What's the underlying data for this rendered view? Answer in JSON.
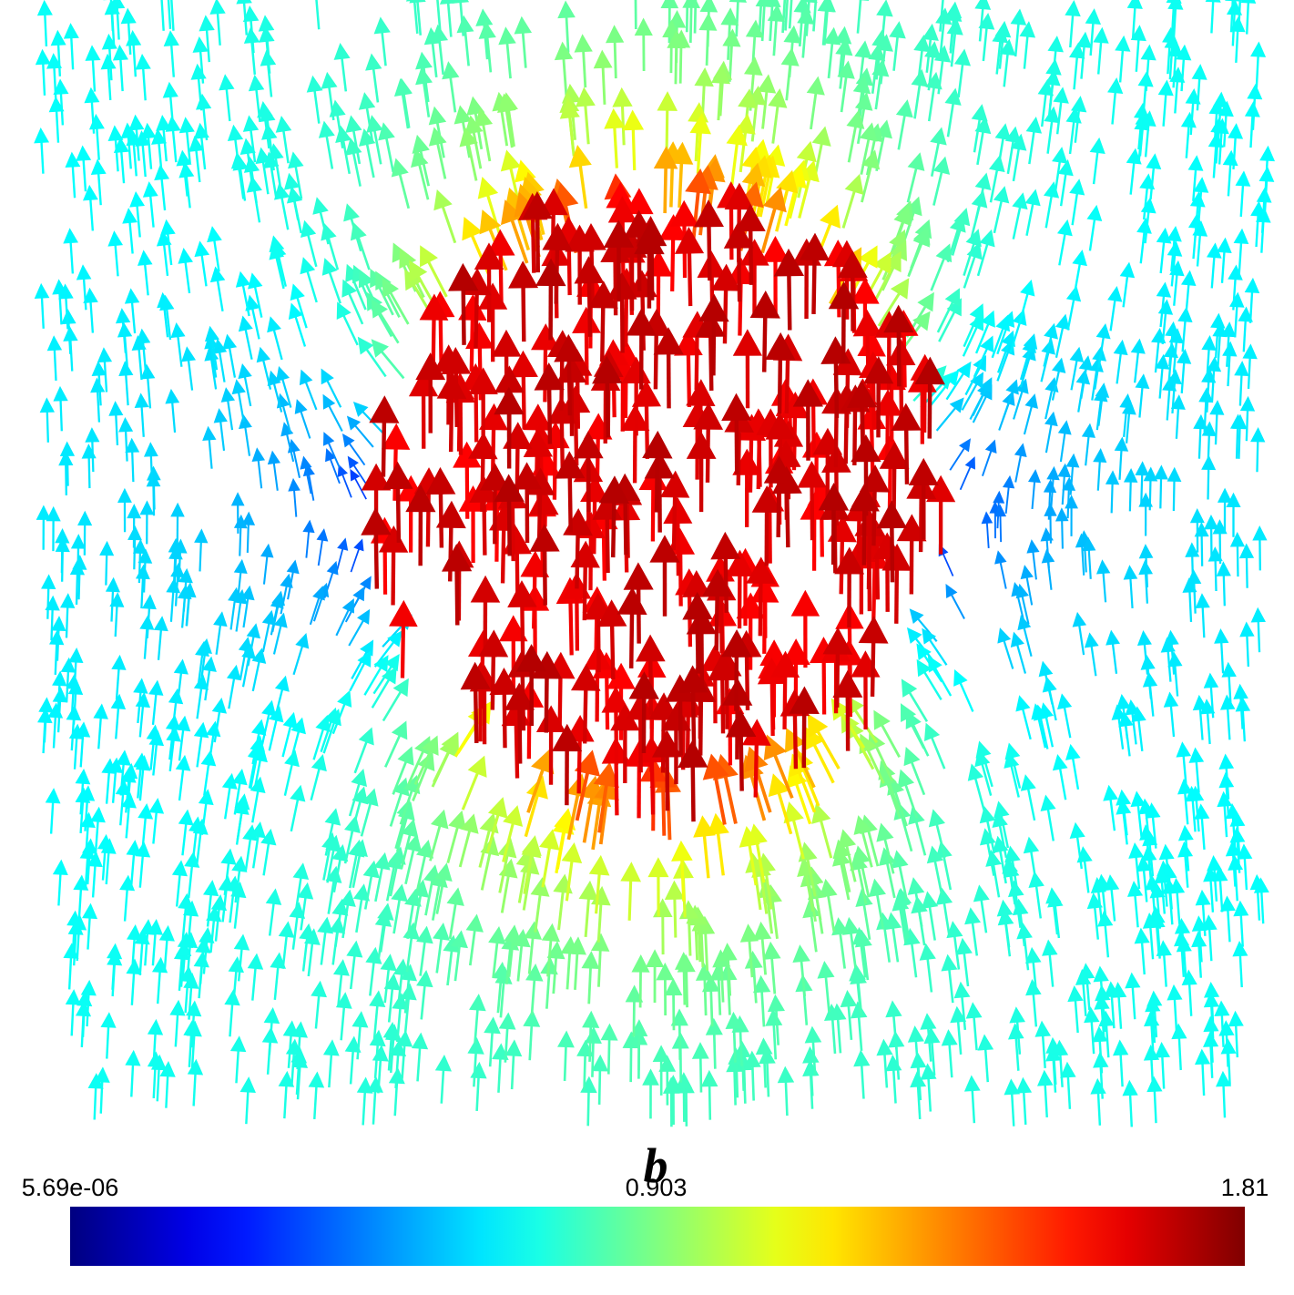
{
  "chart_data": {
    "type": "vector-field",
    "title": "b",
    "colormap": "jet",
    "clim": [
      5.69e-06,
      1.81
    ],
    "cticks": [
      {
        "value": 5.69e-06,
        "label": "5.69e-06"
      },
      0.903,
      1.81
    ]
  }
}
